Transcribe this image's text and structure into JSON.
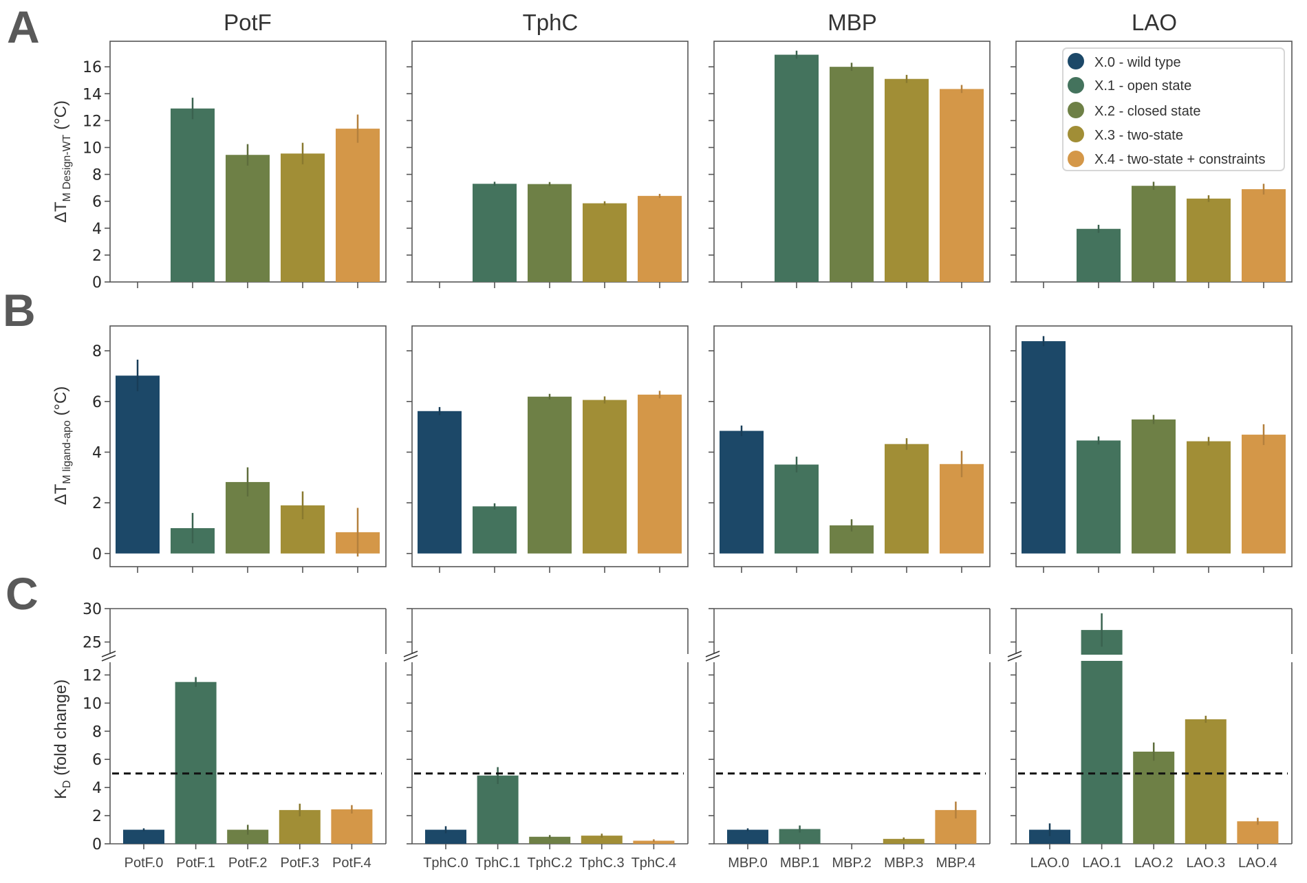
{
  "figure": {
    "panel_letters": [
      "A",
      "B",
      "C"
    ],
    "columns": [
      "PotF",
      "TphC",
      "MBP",
      "LAO"
    ]
  },
  "colors": {
    "X.0": "#1c4868",
    "X.1": "#44735d",
    "X.2": "#6e8046",
    "X.3": "#a18e36",
    "X.4": "#d49748",
    "axis": "#555555",
    "threshold": "#111111"
  },
  "legend": {
    "placement": "top-right of panel A, LAO column",
    "entries": [
      {
        "key": "X.0",
        "label": "X.0 - wild type"
      },
      {
        "key": "X.1",
        "label": "X.1 - open state"
      },
      {
        "key": "X.2",
        "label": "X.2 - closed state"
      },
      {
        "key": "X.3",
        "label": "X.3 - two-state"
      },
      {
        "key": "X.4",
        "label": "X.4 - two-state + constraints"
      }
    ]
  },
  "chart_data": [
    {
      "type": "bar",
      "panel": "A",
      "title": "",
      "ylabel": "ΔT_M Design-WT (°C)",
      "ylabel_main": "ΔT",
      "ylabel_sub": "M Design-WT",
      "ylabel_unit": " (°C)",
      "ylim": [
        0,
        17.9
      ],
      "yticks": [
        0,
        2,
        4,
        6,
        8,
        10,
        12,
        14,
        16
      ],
      "grid": false,
      "groups": [
        {
          "name": "PotF",
          "categories": [
            "PotF.0",
            "PotF.1",
            "PotF.2",
            "PotF.3",
            "PotF.4"
          ],
          "values": [
            null,
            12.9,
            9.45,
            9.55,
            11.4
          ],
          "err_high": [
            null,
            13.7,
            10.25,
            10.35,
            12.45
          ],
          "err_low": [
            null,
            12.1,
            8.65,
            8.75,
            10.35
          ]
        },
        {
          "name": "TphC",
          "categories": [
            "TphC.0",
            "TphC.1",
            "TphC.2",
            "TphC.3",
            "TphC.4"
          ],
          "values": [
            null,
            7.3,
            7.28,
            5.85,
            6.4
          ],
          "err_high": [
            null,
            7.45,
            7.43,
            6.0,
            6.55
          ],
          "err_low": [
            null,
            7.15,
            7.13,
            5.7,
            6.25
          ]
        },
        {
          "name": "MBP",
          "categories": [
            "MBP.0",
            "MBP.1",
            "MBP.2",
            "MBP.3",
            "MBP.4"
          ],
          "values": [
            null,
            16.9,
            16.0,
            15.1,
            14.35
          ],
          "err_high": [
            null,
            17.2,
            16.3,
            15.4,
            14.65
          ],
          "err_low": [
            null,
            16.6,
            15.7,
            14.8,
            14.05
          ]
        },
        {
          "name": "LAO",
          "categories": [
            "LAO.0",
            "LAO.1",
            "LAO.2",
            "LAO.3",
            "LAO.4"
          ],
          "values": [
            null,
            3.95,
            7.15,
            6.2,
            6.9
          ],
          "err_high": [
            null,
            4.25,
            7.45,
            6.45,
            7.3
          ],
          "err_low": [
            null,
            3.65,
            6.85,
            5.95,
            6.5
          ]
        }
      ]
    },
    {
      "type": "bar",
      "panel": "B",
      "ylabel": "ΔT_M ligand-apo (°C)",
      "ylabel_main": "ΔT",
      "ylabel_sub": "M ligand-apo",
      "ylabel_unit": " (°C)",
      "ylim": [
        -0.52,
        8.98
      ],
      "yticks": [
        0,
        2,
        4,
        6,
        8
      ],
      "grid": false,
      "groups": [
        {
          "name": "PotF",
          "categories": [
            "PotF.0",
            "PotF.1",
            "PotF.2",
            "PotF.3",
            "PotF.4"
          ],
          "values": [
            7.02,
            1.0,
            2.82,
            1.9,
            0.84
          ],
          "err_high": [
            7.65,
            1.6,
            3.4,
            2.45,
            1.8
          ],
          "err_low": [
            6.4,
            0.4,
            2.25,
            1.35,
            -0.12
          ]
        },
        {
          "name": "TphC",
          "categories": [
            "TphC.0",
            "TphC.1",
            "TphC.2",
            "TphC.3",
            "TphC.4"
          ],
          "values": [
            5.62,
            1.86,
            6.19,
            6.06,
            6.27
          ],
          "err_high": [
            5.78,
            1.98,
            6.3,
            6.2,
            6.42
          ],
          "err_low": [
            5.46,
            1.74,
            6.08,
            5.92,
            6.12
          ]
        },
        {
          "name": "MBP",
          "categories": [
            "MBP.0",
            "MBP.1",
            "MBP.2",
            "MBP.3",
            "MBP.4"
          ],
          "values": [
            4.84,
            3.51,
            1.11,
            4.32,
            3.53
          ],
          "err_high": [
            5.05,
            3.82,
            1.35,
            4.55,
            4.05
          ],
          "err_low": [
            4.63,
            3.2,
            0.87,
            4.09,
            3.01
          ]
        },
        {
          "name": "LAO",
          "categories": [
            "LAO.0",
            "LAO.1",
            "LAO.2",
            "LAO.3",
            "LAO.4"
          ],
          "values": [
            8.38,
            4.46,
            5.29,
            4.43,
            4.69
          ],
          "err_high": [
            8.58,
            4.62,
            5.47,
            4.6,
            5.1
          ],
          "err_low": [
            8.18,
            4.3,
            5.11,
            4.26,
            4.28
          ]
        }
      ]
    },
    {
      "type": "bar",
      "panel": "C",
      "ylabel": "K_D (fold change)",
      "ylabel_main": "K",
      "ylabel_sub": "D",
      "ylabel_unit": " (fold change)",
      "broken_axis": true,
      "ylim_lower": [
        0,
        13
      ],
      "ylim_upper": [
        23,
        30
      ],
      "yticks_lower": [
        0,
        2,
        4,
        6,
        8,
        10,
        12
      ],
      "yticks_upper": [
        25,
        30
      ],
      "threshold_line": 5,
      "threshold_style": "dashed",
      "grid": false,
      "groups": [
        {
          "name": "PotF",
          "categories": [
            "PotF.0",
            "PotF.1",
            "PotF.2",
            "PotF.3",
            "PotF.4"
          ],
          "values": [
            1.0,
            11.5,
            1.0,
            2.4,
            2.45
          ],
          "err_high": [
            1.1,
            11.85,
            1.35,
            2.85,
            2.75
          ],
          "err_low": [
            0.9,
            11.15,
            0.65,
            1.95,
            2.15
          ]
        },
        {
          "name": "TphC",
          "categories": [
            "TphC.0",
            "TphC.1",
            "TphC.2",
            "TphC.3",
            "TphC.4"
          ],
          "values": [
            1.0,
            4.85,
            0.5,
            0.58,
            0.22
          ],
          "err_high": [
            1.25,
            5.45,
            0.62,
            0.72,
            0.32
          ],
          "err_low": [
            0.75,
            4.25,
            0.38,
            0.44,
            0.12
          ]
        },
        {
          "name": "MBP",
          "categories": [
            "MBP.0",
            "MBP.1",
            "MBP.2",
            "MBP.3",
            "MBP.4"
          ],
          "values": [
            1.0,
            1.05,
            null,
            0.35,
            2.4
          ],
          "err_high": [
            1.1,
            1.3,
            null,
            0.45,
            3.0
          ],
          "err_low": [
            0.9,
            0.8,
            null,
            0.25,
            1.8
          ]
        },
        {
          "name": "LAO",
          "categories": [
            "LAO.0",
            "LAO.1",
            "LAO.2",
            "LAO.3",
            "LAO.4"
          ],
          "values": [
            1.0,
            26.8,
            6.55,
            8.85,
            1.6
          ],
          "err_high": [
            1.45,
            29.3,
            7.2,
            9.1,
            1.85
          ],
          "err_low": [
            0.55,
            24.3,
            5.9,
            8.6,
            1.35
          ]
        }
      ]
    }
  ]
}
